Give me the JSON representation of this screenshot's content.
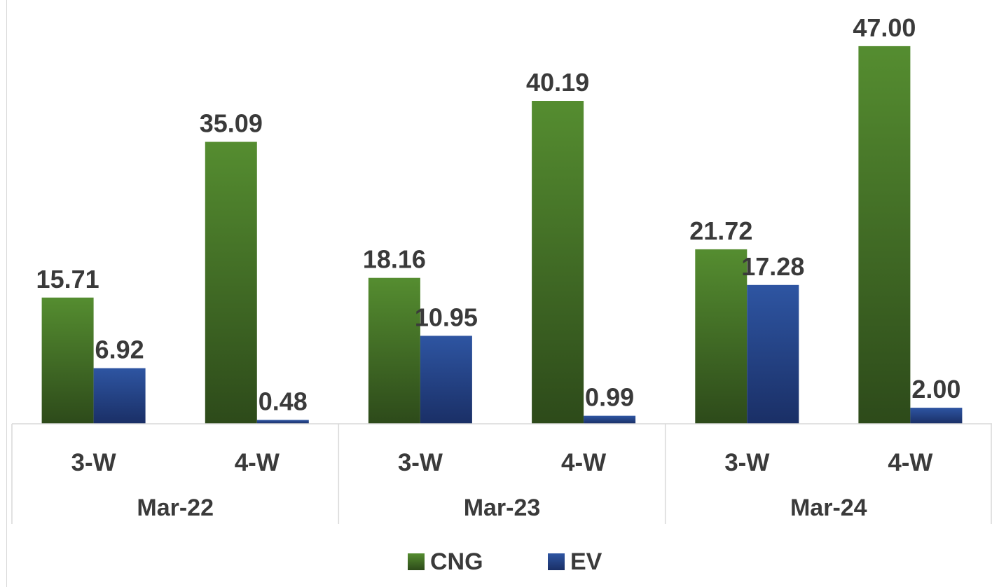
{
  "chart_data": {
    "type": "bar",
    "title": "",
    "xlabel": "",
    "ylabel": "",
    "ylim": [
      0,
      52
    ],
    "grid": false,
    "legend_position": "bottom",
    "groups": [
      "Mar-22",
      "Mar-23",
      "Mar-24"
    ],
    "categories": [
      "3-W",
      "4-W",
      "3-W",
      "4-W",
      "3-W",
      "4-W"
    ],
    "category_group": [
      0,
      0,
      1,
      1,
      2,
      2
    ],
    "series": [
      {
        "name": "CNG",
        "color": "#4a7c2a",
        "values": [
          15.71,
          35.09,
          18.16,
          40.19,
          21.72,
          47.0
        ],
        "labels": [
          "15.71",
          "35.09",
          "18.16",
          "40.19",
          "21.72",
          "47.00"
        ]
      },
      {
        "name": "EV",
        "color": "#2a4f9a",
        "values": [
          6.92,
          0.48,
          10.95,
          0.99,
          17.28,
          2.0
        ],
        "labels": [
          "6.92",
          "0.48",
          "10.95",
          "0.99",
          "17.28",
          "2.00"
        ]
      }
    ]
  }
}
